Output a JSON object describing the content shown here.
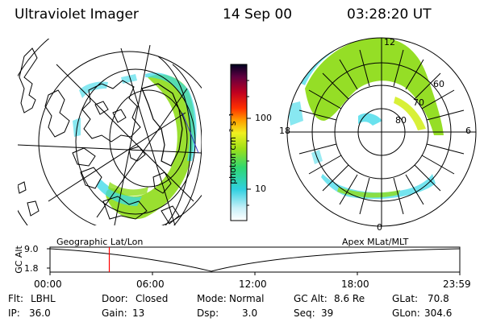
{
  "header": {
    "title": "Ultraviolet Imager",
    "date": "14 Sep 00",
    "time": "03:28:20 UT"
  },
  "colorbar": {
    "unit": "photon cm⁻² s⁻¹",
    "tick_high": "100",
    "tick_low": "10"
  },
  "left_panel": {
    "label": "Geographic Lat/Lon"
  },
  "right_panel": {
    "label": "Apex MLat/MLT",
    "mlt_labels": {
      "top": "12",
      "left": "18",
      "right": "6",
      "bottom": "0"
    },
    "lat_labels": [
      "60",
      "70",
      "80"
    ]
  },
  "timeline": {
    "ylabel": "GC Alt",
    "y_top": "9.0",
    "y_bottom": "1.8",
    "x_ticks": [
      "00:00",
      "06:00",
      "12:00",
      "18:00",
      "23:59"
    ],
    "current_time_fraction": 0.1447,
    "cursor_color": "#ff0000"
  },
  "info": {
    "flt_label": "Flt:",
    "flt_value": "LBHL",
    "ip_label": "IP:",
    "ip_value": "36.0",
    "door_label": "Door:",
    "door_value": "Closed",
    "gain_label": "Gain:",
    "gain_value": "13",
    "mode_label": "Mode:",
    "mode_value": "Normal",
    "dsp_label": "Dsp:",
    "dsp_value": "3.0",
    "gcalt_label": "GC Alt:",
    "gcalt_value": "8.6 Re",
    "seq_label": "Seq:",
    "seq_value": "39",
    "glat_label": "GLat:",
    "glat_value": "70.8",
    "glon_label": "GLon:",
    "glon_value": "304.6"
  },
  "colors": {
    "aurora_green": "#8fdc1a",
    "aurora_cyan": "#38d8e8",
    "aurora_yellow": "#d4ee22"
  }
}
